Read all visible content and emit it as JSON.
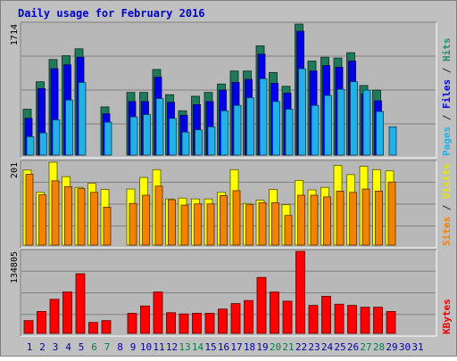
{
  "chart_data": {
    "title": "Daily usage for February 2016",
    "type": "bar",
    "x": [
      "1",
      "2",
      "3",
      "4",
      "5",
      "6",
      "7",
      "8",
      "9",
      "10",
      "11",
      "12",
      "13",
      "14",
      "15",
      "16",
      "17",
      "18",
      "19",
      "20",
      "21",
      "22",
      "23",
      "24",
      "25",
      "26",
      "27",
      "28",
      "29",
      "30",
      "31"
    ],
    "weekend_days": [
      "6",
      "7",
      "13",
      "14",
      "20",
      "21",
      "27",
      "28"
    ],
    "panels": [
      {
        "id": "hits-files-pages",
        "ymax_label": "1714",
        "ylim": [
          0,
          1714
        ],
        "right_labels": [
          {
            "text": "Pages",
            "color": "#22b0e8"
          },
          {
            "text": " / ",
            "color": "#2b2b2b"
          },
          {
            "text": "Files",
            "color": "#0000e6"
          },
          {
            "text": " / ",
            "color": "#2b2b2b"
          },
          {
            "text": "Hits",
            "color": "#2a8a6a"
          }
        ],
        "series": [
          {
            "name": "Hits",
            "color": "#1e7a5a",
            "values": [
              600,
              960,
              1250,
              1300,
              1390,
              null,
              630,
              null,
              820,
              820,
              1120,
              790,
              580,
              770,
              820,
              930,
              1100,
              1100,
              1430,
              1080,
              900,
              1714,
              1230,
              1280,
              1270,
              1340,
              910,
              850,
              null,
              null,
              null
            ]
          },
          {
            "name": "Files",
            "color": "#0000e6",
            "values": [
              480,
              870,
              1130,
              1180,
              1280,
              null,
              540,
              null,
              700,
              700,
              1020,
              690,
              520,
              660,
              700,
              850,
              950,
              990,
              1320,
              940,
              810,
              1620,
              1100,
              1170,
              1150,
              1230,
              800,
              710,
              null,
              null,
              null
            ]
          },
          {
            "name": "Pages",
            "color": "#22b0e8",
            "values": [
              240,
              290,
              460,
              720,
              950,
              null,
              430,
              null,
              500,
              530,
              740,
              480,
              300,
              330,
              370,
              580,
              650,
              750,
              1000,
              700,
              600,
              1130,
              650,
              780,
              860,
              960,
              850,
              570,
              370,
              null,
              null
            ]
          }
        ]
      },
      {
        "id": "visits-sites",
        "ymax_label": "201",
        "ylim": [
          0,
          201
        ],
        "right_labels": [
          {
            "text": "Sites",
            "color": "#f28200"
          },
          {
            "text": " / ",
            "color": "#2b2b2b"
          },
          {
            "text": "Visits",
            "color": "#e6e600"
          }
        ],
        "series": [
          {
            "name": "Visits",
            "color": "#ffff00",
            "values": [
              182,
              128,
              201,
              166,
              140,
              150,
              135,
              null,
              136,
              164,
              183,
              112,
              114,
              112,
              112,
              128,
              183,
              101,
              109,
              135,
              98,
              157,
              134,
              140,
              193,
              171,
              191,
              183,
              180,
              null,
              null
            ]
          },
          {
            "name": "Sites",
            "color": "#f28200",
            "values": [
              172,
              122,
              156,
              142,
              137,
              128,
              92,
              null,
              101,
              121,
              143,
              110,
              97,
              100,
              100,
              120,
              132,
              98,
              103,
              103,
              72,
              121,
              121,
              117,
              131,
              128,
              136,
              131,
              153,
              null,
              null
            ]
          }
        ]
      },
      {
        "id": "kbytes",
        "ymax_label": "134805",
        "ylim": [
          0,
          134805
        ],
        "right_labels": [
          {
            "text": "KBytes",
            "color": "#ee0000"
          }
        ],
        "series": [
          {
            "name": "KBytes",
            "color": "#ff0000",
            "values": [
              21000,
              36000,
              56000,
              68000,
              98000,
              18000,
              21000,
              null,
              33000,
              45000,
              68000,
              34000,
              32000,
              33000,
              33000,
              40000,
              49000,
              54000,
              92000,
              68000,
              53000,
              134805,
              46000,
              61000,
              48000,
              46000,
              43000,
              43000,
              36000,
              null,
              null
            ]
          }
        ]
      }
    ]
  },
  "colors": {
    "frame": "#c0c0c0",
    "plot_bg": "#b8b8b8",
    "title": "#0000cc",
    "weekday": "#0000aa",
    "weekend": "#00804c",
    "gridline": "#808080"
  }
}
